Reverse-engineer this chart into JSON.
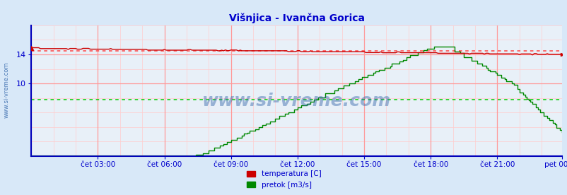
{
  "title": "Višnjica - Ivančna Gorica",
  "title_color": "#0000cc",
  "title_fontsize": 10,
  "bg_color": "#d8e8f8",
  "plot_bg_color": "#e8f0f8",
  "grid_color_major_v": "#ff9999",
  "grid_color_minor_v": "#ffcccc",
  "grid_color_major_h": "#ff9999",
  "grid_color_minor_h": "#ffcccc",
  "x_tick_labels": [
    "čet 03:00",
    "čet 06:00",
    "čet 09:00",
    "čet 12:00",
    "čet 15:00",
    "čet 18:00",
    "čet 21:00",
    "pet 00:00"
  ],
  "y_ticks": [
    10,
    14
  ],
  "ylim_min": 0,
  "ylim_max": 18,
  "n_points": 288,
  "temp_color": "#cc0000",
  "flow_color": "#008800",
  "avg_temp_color": "#ff4444",
  "avg_flow_color": "#00cc00",
  "avg_temp_val": 14.45,
  "avg_flow_val": 7.8,
  "watermark": "www.si-vreme.com",
  "watermark_color": "#3366aa",
  "watermark_alpha": 0.45,
  "watermark_fontsize": 18,
  "legend_temp": "temperatura [C]",
  "legend_flow": "pretok [m3/s]",
  "border_color_left": "#0000bb",
  "border_color_bottom": "#0000bb",
  "axis_tick_color": "#0000cc",
  "left_label": "www.si-vreme.com",
  "left_label_color": "#3366aa"
}
